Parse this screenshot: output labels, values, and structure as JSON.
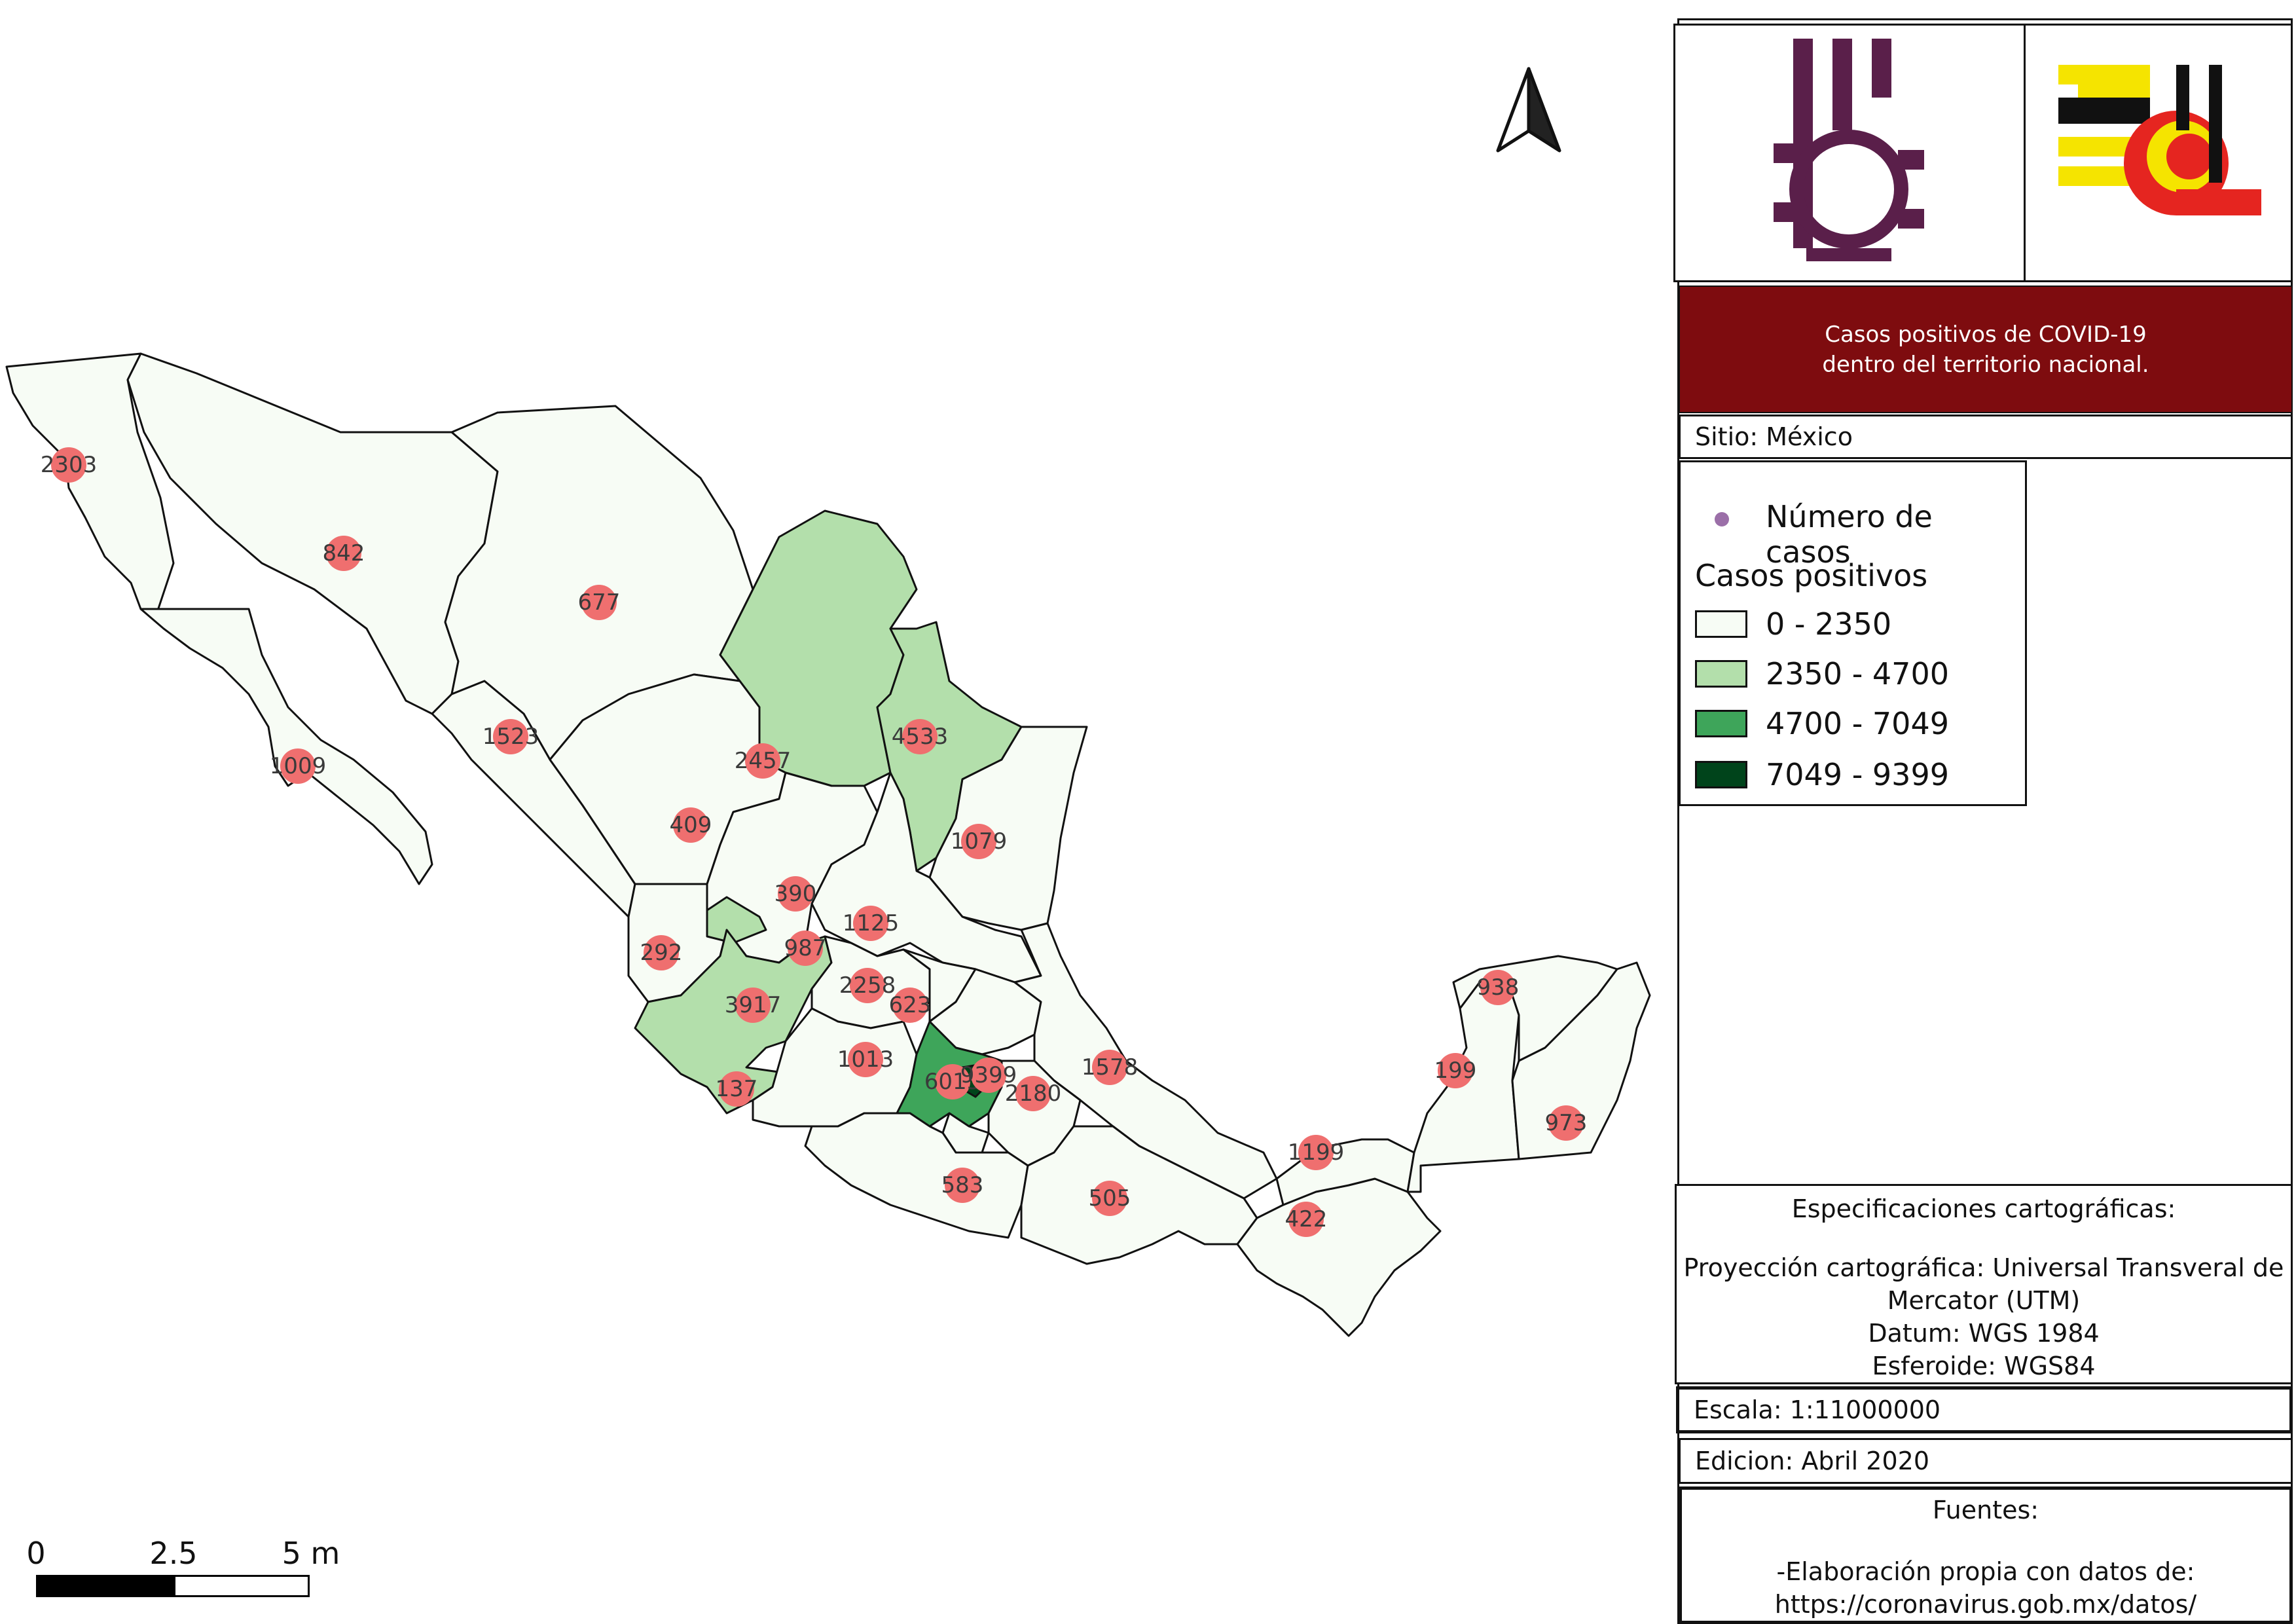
{
  "title": {
    "line1": "Casos positivos de COVID-19",
    "line2": "dentro del territorio nacional."
  },
  "site": "Sitio: México",
  "legend": {
    "points_label": "Número de casos",
    "heading": "Casos positivos",
    "classes": [
      {
        "label": "0 - 2350",
        "color": "#f7fcf5"
      },
      {
        "label": "2350 - 4700",
        "color": "#b3dfab"
      },
      {
        "label": "4700 - 7049",
        "color": "#3ea55a"
      },
      {
        "label": "7049 - 9399",
        "color": "#00441b"
      }
    ]
  },
  "specs": {
    "heading": "Especificaciones cartográficas:",
    "projection": "Proyección cartográfica: Universal Transveral de",
    "projection_cont": "Mercator (UTM)",
    "datum": "Datum: WGS 1984",
    "ellipsoid": "Esferoide: WGS84"
  },
  "scale_text": "Escala: 1:11000000",
  "edition": "Edicion: Abril 2020",
  "sources": {
    "heading": "Fuentes:",
    "line1": "-Elaboración propia con datos de:",
    "line2": "https://coronavirus.gob.mx/datos/"
  },
  "scalebar": {
    "labels": [
      "0",
      "2.5",
      "5 m"
    ]
  },
  "markers": [
    {
      "value": "2303"
    },
    {
      "value": "842"
    },
    {
      "value": "677"
    },
    {
      "value": "1009"
    },
    {
      "value": "1523"
    },
    {
      "value": "2457"
    },
    {
      "value": "4533"
    },
    {
      "value": "409"
    },
    {
      "value": "1079"
    },
    {
      "value": "390"
    },
    {
      "value": "1125"
    },
    {
      "value": "292"
    },
    {
      "value": "987"
    },
    {
      "value": "2258"
    },
    {
      "value": "3917"
    },
    {
      "value": "623"
    },
    {
      "value": "1013"
    },
    {
      "value": "1578"
    },
    {
      "value": "137"
    },
    {
      "value": "6015"
    },
    {
      "value": "9399"
    },
    {
      "value": "2180"
    },
    {
      "value": "583"
    },
    {
      "value": "505"
    },
    {
      "value": "422"
    },
    {
      "value": "1199"
    },
    {
      "value": "938"
    },
    {
      "value": "199"
    },
    {
      "value": "973"
    }
  ],
  "colors": {
    "marker": "#ef6f6f",
    "title_bg": "#7e0c0f"
  }
}
